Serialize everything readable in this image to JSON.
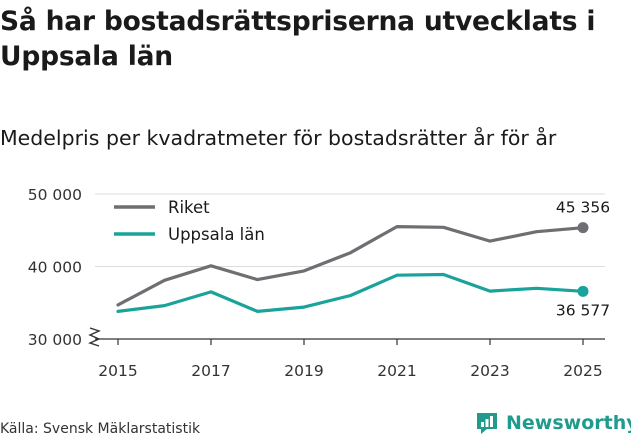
{
  "title": "Så har bostadsrättspriserna utvecklats i Uppsala län",
  "subtitle": "Medelpris per kvadratmeter för bostadsrätter år för år",
  "source": "Källa: Svensk Mäklarstatistik",
  "brand": {
    "name": "Newsworthy",
    "color": "#1f9b8e"
  },
  "chart_data": {
    "type": "line",
    "title": "Så har bostadsrättspriserna utvecklats i Uppsala län",
    "subtitle": "Medelpris per kvadratmeter för bostadsrätter år för år",
    "xlabel": "",
    "ylabel": "",
    "xlim": [
      2015,
      2025
    ],
    "ylim": [
      30000,
      50000
    ],
    "x": [
      2015,
      2016,
      2017,
      2018,
      2019,
      2020,
      2021,
      2022,
      2023,
      2024,
      2025
    ],
    "xticks": [
      2015,
      2017,
      2019,
      2021,
      2023,
      2025
    ],
    "xtick_labels": [
      "2015",
      "2017",
      "2019",
      "2021",
      "2023",
      "2025"
    ],
    "yticks": [
      30000,
      40000,
      50000
    ],
    "ytick_labels": [
      "30 000",
      "40 000",
      "50 000"
    ],
    "legend_position": "top-left",
    "series": [
      {
        "name": "Riket",
        "color": "#6e6e73",
        "values": [
          34700,
          38100,
          40100,
          38200,
          39400,
          41900,
          45500,
          45400,
          43500,
          44800,
          45356
        ],
        "end_label": "45 356"
      },
      {
        "name": "Uppsala län",
        "color": "#1aa39a",
        "values": [
          33800,
          34600,
          36500,
          33800,
          34400,
          36000,
          38800,
          38900,
          36600,
          37000,
          36577
        ],
        "end_label": "36 577"
      }
    ]
  }
}
